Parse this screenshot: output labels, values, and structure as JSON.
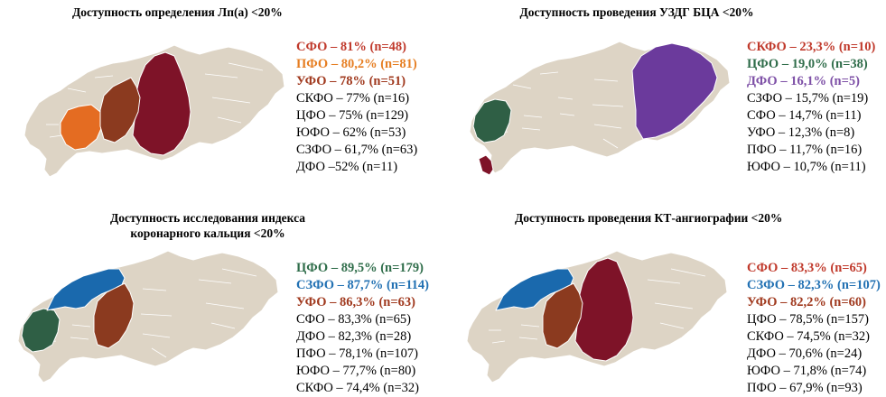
{
  "colors": {
    "land": "#ddd4c5",
    "border": "#ffffff",
    "darkred": "#7e1328",
    "brown": "#8b3a1f",
    "orange": "#e46c22",
    "green": "#2f5f45",
    "blue": "#1a69ad",
    "purple": "#6b3a9c",
    "text_red": "#c0392b",
    "text_orange": "#e67e22",
    "text_brown": "#a0391e",
    "text_green": "#2f6d4a",
    "text_blue": "#2271b3",
    "text_purple": "#7d4fa6"
  },
  "panels": [
    {
      "title": "Доступность определения Лп(а) <20%",
      "highlighted": [
        {
          "region": "SFO",
          "color": "darkred"
        },
        {
          "region": "PFO",
          "color": "orange"
        },
        {
          "region": "UFO",
          "color": "brown"
        }
      ],
      "legend": [
        {
          "text": "СФО – 81% (n=48)",
          "color": "text_red",
          "bold": true
        },
        {
          "text": "ПФО – 80,2% (n=81)",
          "color": "text_orange",
          "bold": true
        },
        {
          "text": "УФО – 78% (n=51)",
          "color": "text_brown",
          "bold": true
        },
        {
          "text": "СКФО – 77% (n=16)"
        },
        {
          "text": "ЦФО – 75% (n=129)"
        },
        {
          "text": "ЮФО – 62% (n=53)"
        },
        {
          "text": "СЗФО – 61,7% (n=63)"
        },
        {
          "text": "ДФО –52% (n=11)"
        }
      ]
    },
    {
      "title": "Доступность проведения УЗДГ БЦА <20%",
      "highlighted": [
        {
          "region": "SKFO",
          "color": "darkred"
        },
        {
          "region": "CFO",
          "color": "green"
        },
        {
          "region": "DFO",
          "color": "purple"
        }
      ],
      "legend": [
        {
          "text": "СКФО – 23,3% (n=10)",
          "color": "text_red",
          "bold": true
        },
        {
          "text": "ЦФО – 19,0% (n=38)",
          "color": "text_green",
          "bold": true
        },
        {
          "text": "ДФО – 16,1% (n=5)",
          "color": "text_purple",
          "bold": true
        },
        {
          "text": "СЗФО – 15,7% (n=19)"
        },
        {
          "text": "СФО – 14,7% (n=11)"
        },
        {
          "text": "УФО – 12,3% (n=8)"
        },
        {
          "text": "ПФО – 11,7% (n=16)"
        },
        {
          "text": "ЮФО – 10,7% (n=11)"
        }
      ]
    },
    {
      "title": "Доступность исследования индекса коронарного кальция <20%",
      "title_lines": [
        "Доступность исследования индекса",
        "коронарного кальция <20%"
      ],
      "highlighted": [
        {
          "region": "CFO",
          "color": "green"
        },
        {
          "region": "SZFO",
          "color": "blue"
        },
        {
          "region": "UFO",
          "color": "brown"
        }
      ],
      "legend": [
        {
          "text": "ЦФО – 89,5% (n=179)",
          "color": "text_green",
          "bold": true
        },
        {
          "text": "СЗФО – 87,7% (n=114)",
          "color": "text_blue",
          "bold": true
        },
        {
          "text": "УФО – 86,3% (n=63)",
          "color": "text_brown",
          "bold": true
        },
        {
          "text": "СФО – 83,3% (n=65)"
        },
        {
          "text": "ДФО – 82,3% (n=28)"
        },
        {
          "text": "ПФО – 78,1% (n=107)"
        },
        {
          "text": "ЮФО – 77,7% (n=80)"
        },
        {
          "text": "СКФО – 74,4% (n=32)"
        }
      ]
    },
    {
      "title": "Доступность проведения КТ-ангиографии <20%",
      "highlighted": [
        {
          "region": "SFO",
          "color": "darkred"
        },
        {
          "region": "SZFO",
          "color": "blue"
        },
        {
          "region": "UFO",
          "color": "brown"
        }
      ],
      "legend": [
        {
          "text": "СФО – 83,3% (n=65)",
          "color": "text_red",
          "bold": true
        },
        {
          "text": "СЗФО – 82,3% (n=107)",
          "color": "text_blue",
          "bold": true
        },
        {
          "text": "УФО – 82,2% (n=60)",
          "color": "text_brown",
          "bold": true
        },
        {
          "text": "ЦФО – 78,5% (n=157)"
        },
        {
          "text": "СКФО – 74,5% (n=32)"
        },
        {
          "text": "ДФО – 70,6% (n=24)"
        },
        {
          "text": "ЮФО – 71,8% (n=74)"
        },
        {
          "text": "ПФО – 67,9% (n=93)"
        }
      ]
    }
  ]
}
